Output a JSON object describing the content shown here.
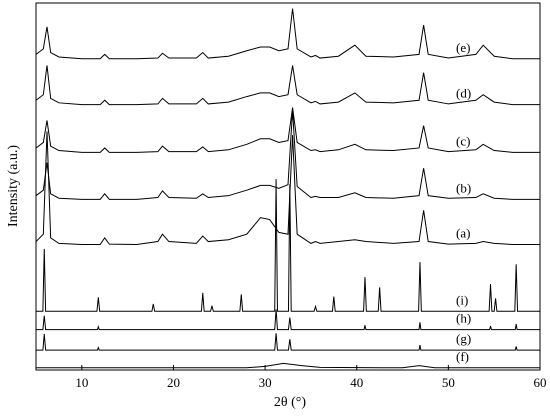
{
  "chart_data": {
    "type": "line",
    "xlabel": "2θ (°)",
    "ylabel": "Intensity (a.u.)",
    "xlim": [
      5,
      60
    ],
    "xticks": [
      10,
      20,
      30,
      40,
      50,
      60
    ],
    "ylim": [
      0,
      100
    ],
    "series": [
      {
        "name": "(a)",
        "color": "#000000",
        "x": [
          5,
          5.8,
          6.2,
          6.6,
          7.5,
          10,
          12,
          12.5,
          13,
          16,
          18.3,
          18.8,
          19.5,
          22.5,
          23.2,
          23.8,
          26,
          28,
          29.5,
          30.5,
          31.5,
          32.5,
          33,
          33.5,
          35,
          35.5,
          36,
          38,
          39.8,
          41,
          44,
          46.8,
          47.3,
          47.8,
          50,
          53,
          53.8,
          55,
          57,
          60
        ],
        "values": [
          35,
          37,
          65,
          36,
          34.5,
          34.2,
          34.2,
          36,
          34.3,
          34.2,
          35,
          37,
          35,
          34.5,
          36.5,
          35,
          35.5,
          37,
          41.5,
          41,
          37.5,
          37,
          64,
          37,
          34.5,
          35,
          34.5,
          35,
          35.5,
          35,
          34.5,
          35,
          43.5,
          35,
          34.3,
          34.5,
          35,
          34.5,
          34.2,
          34.2
        ]
      },
      {
        "name": "(b)",
        "color": "#000000",
        "x": [
          5,
          5.8,
          6.2,
          6.6,
          7.5,
          10,
          12,
          12.5,
          13,
          16,
          18.3,
          18.8,
          19.5,
          22.5,
          23.2,
          23.8,
          26,
          28,
          29.5,
          30.5,
          31.5,
          32.5,
          33,
          33.5,
          35,
          35.5,
          36,
          38,
          39.8,
          41,
          44,
          46.8,
          47.3,
          47.8,
          50,
          53,
          53.8,
          55,
          57,
          60
        ],
        "values": [
          47.5,
          49,
          56.5,
          48,
          46.8,
          46.5,
          46.5,
          48,
          46.5,
          46.5,
          47,
          48.8,
          47,
          46.8,
          48,
          47,
          47.5,
          49,
          50.3,
          50.3,
          49.5,
          50.5,
          70.8,
          50,
          47,
          47.3,
          47,
          47,
          48.3,
          47,
          46.8,
          47.5,
          55,
          47.5,
          46.8,
          47,
          48,
          46.8,
          46.5,
          46.5
        ]
      },
      {
        "name": "(c)",
        "color": "#000000",
        "x": [
          5,
          5.8,
          6.2,
          6.6,
          7.5,
          10,
          12,
          12.5,
          13,
          16,
          18.3,
          18.8,
          19.5,
          22.5,
          23.2,
          23.8,
          26,
          28,
          29.5,
          30.5,
          31.5,
          32.5,
          33,
          33.5,
          35,
          35.5,
          36,
          38,
          39.8,
          41,
          44,
          46.8,
          47.3,
          47.8,
          50,
          53,
          53.8,
          55,
          57,
          60
        ],
        "values": [
          60.5,
          62,
          68,
          61,
          59.8,
          59.3,
          59.3,
          60.5,
          59.3,
          59.3,
          59.5,
          61,
          59.5,
          59.5,
          60.8,
          59.5,
          60,
          61.5,
          63,
          63,
          62,
          62.5,
          71.5,
          62,
          59.8,
          60,
          59.5,
          60,
          61.5,
          60,
          59.8,
          60.5,
          66.6,
          60.5,
          59.5,
          60,
          61.5,
          59.8,
          59.3,
          59.3
        ]
      },
      {
        "name": "(d)",
        "color": "#000000",
        "x": [
          5,
          5.8,
          6.2,
          6.6,
          7.5,
          10,
          12,
          12.5,
          13,
          16,
          18.3,
          18.8,
          19.5,
          22.5,
          23.2,
          23.8,
          26,
          28,
          29.5,
          30.5,
          31.5,
          32.5,
          33,
          33.5,
          35,
          35.5,
          36,
          38,
          39.8,
          41,
          44,
          46.8,
          47.3,
          47.8,
          50,
          53,
          53.8,
          55,
          57,
          60
        ],
        "values": [
          73.5,
          75,
          83,
          74,
          72.8,
          72.3,
          72.3,
          73.5,
          72.3,
          72.3,
          72.5,
          74,
          72.5,
          72.5,
          74,
          72.5,
          73,
          74.5,
          75.5,
          75.5,
          74.5,
          75,
          83,
          75,
          72.8,
          73.2,
          72.5,
          73,
          75.5,
          73,
          72.8,
          73.5,
          81,
          73.5,
          72.5,
          73.5,
          75,
          73,
          72.3,
          72.3
        ]
      },
      {
        "name": "(e)",
        "color": "#000000",
        "x": [
          5,
          5.8,
          6.2,
          6.6,
          7.5,
          10,
          12,
          12.5,
          13,
          16,
          18.3,
          18.8,
          19.5,
          22.5,
          23.2,
          23.8,
          26,
          28,
          29.5,
          30.5,
          31.5,
          32.5,
          33,
          33.5,
          35,
          35.5,
          36,
          38,
          39.8,
          41,
          44,
          46.8,
          47.3,
          47.8,
          50,
          53,
          53.8,
          55,
          57,
          60
        ],
        "values": [
          86,
          87.5,
          93.5,
          86.5,
          85.3,
          84.8,
          84.8,
          86,
          84.8,
          84.8,
          85,
          86.3,
          85,
          85,
          86.5,
          85,
          85.5,
          87,
          88,
          88,
          87,
          87.5,
          98.5,
          87.5,
          85.3,
          85.7,
          85,
          85.5,
          88.5,
          85.5,
          85.3,
          86,
          94,
          86,
          85,
          86,
          88.5,
          85.5,
          84.8,
          84.8
        ]
      },
      {
        "name": "(f)",
        "color": "#000000",
        "x": [
          5,
          28,
          30,
          32,
          34,
          36,
          45,
          46.8,
          48.5,
          60
        ],
        "values": [
          0.6,
          0.6,
          1,
          1.8,
          1.2,
          0.7,
          0.6,
          1.2,
          0.6,
          0.6
        ]
      },
      {
        "name": "(g)",
        "color": "#000000",
        "x": [
          5,
          5.75,
          5.9,
          6.05,
          11.7,
          11.8,
          11.9,
          31.05,
          31.2,
          31.35,
          32.55,
          32.7,
          32.85,
          46.8,
          46.9,
          47.0,
          57.3,
          57.4,
          57.5,
          60
        ],
        "values": [
          5.4,
          5.4,
          9.8,
          5.4,
          5.4,
          6.1,
          5.4,
          5.4,
          10,
          5.4,
          5.4,
          8.4,
          5.4,
          5.4,
          6.8,
          5.4,
          5.4,
          6.4,
          5.4,
          5.4
        ]
      },
      {
        "name": "(h)",
        "color": "#000000",
        "x": [
          5,
          5.75,
          5.9,
          6.05,
          11.7,
          11.8,
          11.9,
          31.05,
          31.2,
          31.35,
          32.55,
          32.7,
          32.85,
          40.8,
          40.9,
          41.0,
          46.8,
          46.9,
          47.0,
          54.5,
          54.6,
          54.7,
          57.3,
          57.4,
          57.5,
          60
        ],
        "values": [
          11,
          11,
          14.8,
          11,
          11,
          11.8,
          11,
          11,
          16.5,
          11,
          11,
          14.3,
          11,
          11,
          12.2,
          11,
          11,
          13,
          11,
          11,
          12,
          11,
          11,
          12.5,
          11,
          11
        ]
      },
      {
        "name": "(i)",
        "color": "#000000",
        "x": [
          5,
          5.75,
          5.9,
          6.05,
          11.65,
          11.8,
          11.95,
          17.65,
          17.8,
          17.95,
          23.05,
          23.2,
          23.35,
          24.05,
          24.2,
          24.35,
          27.25,
          27.4,
          27.55,
          31.05,
          31.2,
          31.35,
          32.55,
          32.7,
          32.85,
          35.35,
          35.5,
          35.65,
          37.35,
          37.5,
          37.65,
          40.75,
          40.9,
          41.05,
          42.35,
          42.5,
          42.65,
          46.75,
          46.9,
          47.05,
          54.45,
          54.6,
          54.75,
          55,
          55.15,
          55.3,
          57.25,
          57.4,
          57.55,
          60
        ],
        "values": [
          16,
          16,
          33,
          16,
          16,
          19.8,
          16,
          16,
          18,
          16,
          16,
          21,
          16,
          16,
          17.5,
          16,
          16,
          20.6,
          16,
          16,
          52,
          16,
          16,
          50.6,
          16,
          16,
          17.3,
          16,
          16,
          20,
          16,
          16,
          25.3,
          16,
          16,
          22.5,
          16,
          16,
          29.4,
          16,
          16,
          23.4,
          16,
          16,
          19.5,
          16,
          16,
          28.8,
          16,
          16
        ]
      }
    ]
  }
}
